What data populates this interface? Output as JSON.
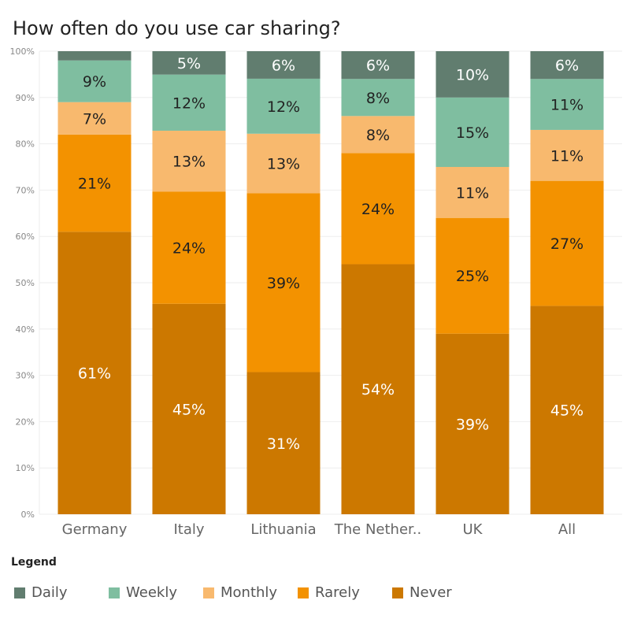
{
  "chart_data": {
    "type": "bar",
    "stacked": true,
    "title": "How often do you use car sharing?",
    "categories": [
      "Germany",
      "Italy",
      "Lithuania",
      "The Nether..",
      "UK",
      "All"
    ],
    "series": [
      {
        "name": "Never",
        "color": "#cc7800",
        "label_color": "#ffffff",
        "values": [
          61,
          45,
          31,
          54,
          39,
          45
        ]
      },
      {
        "name": "Rarely",
        "color": "#f39200",
        "label_color": "#222222",
        "values": [
          21,
          24,
          39,
          24,
          25,
          27
        ]
      },
      {
        "name": "Monthly",
        "color": "#f8b96e",
        "label_color": "#222222",
        "values": [
          7,
          13,
          13,
          8,
          11,
          11
        ]
      },
      {
        "name": "Weekly",
        "color": "#7fbea0",
        "label_color": "#222222",
        "values": [
          9,
          12,
          12,
          8,
          15,
          11
        ]
      },
      {
        "name": "Daily",
        "color": "#617d6f",
        "label_color": "#ffffff",
        "values": [
          2,
          5,
          6,
          6,
          10,
          6
        ]
      }
    ],
    "hidden_labels": [
      [
        4,
        0
      ]
    ],
    "yticks": [
      "0%",
      "10%",
      "20%",
      "30%",
      "40%",
      "50%",
      "60%",
      "70%",
      "80%",
      "90%",
      "100%"
    ],
    "ylim": [
      0,
      100
    ],
    "grid": true,
    "legend_title": "Legend",
    "legend_order": [
      "Daily",
      "Weekly",
      "Monthly",
      "Rarely",
      "Never"
    ],
    "legend_placement": "bottom"
  }
}
